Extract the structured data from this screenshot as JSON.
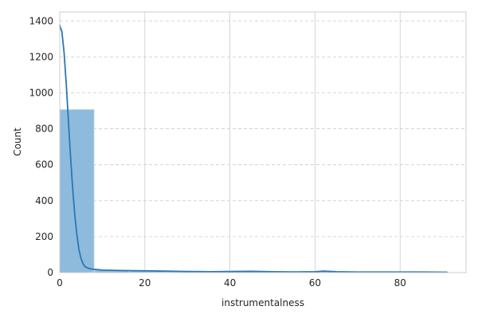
{
  "chart_data": {
    "type": "bar",
    "subtype": "histogram-with-kde",
    "xlabel": "instrumentalness",
    "ylabel": "Count",
    "xlim": [
      0,
      95.5
    ],
    "ylim": [
      0,
      1450
    ],
    "x_ticks": [
      0,
      20,
      40,
      60,
      80
    ],
    "y_ticks": [
      0,
      200,
      400,
      600,
      800,
      1000,
      1200,
      1400
    ],
    "grid": true,
    "bars": [
      {
        "x0": 0,
        "x1": 8.1,
        "value": 908
      },
      {
        "x0": 8.1,
        "x1": 16.2,
        "value": 14
      },
      {
        "x0": 16.2,
        "x1": 24.3,
        "value": 9
      },
      {
        "x0": 24.3,
        "x1": 32.4,
        "value": 5
      },
      {
        "x0": 32.4,
        "x1": 40.5,
        "value": 4
      },
      {
        "x0": 40.5,
        "x1": 48.6,
        "value": 6
      },
      {
        "x0": 48.6,
        "x1": 56.7,
        "value": 4
      },
      {
        "x0": 56.7,
        "x1": 64.8,
        "value": 6
      },
      {
        "x0": 64.8,
        "x1": 72.9,
        "value": 3
      },
      {
        "x0": 72.9,
        "x1": 81.0,
        "value": 3
      },
      {
        "x0": 81.0,
        "x1": 89.1,
        "value": 3
      },
      {
        "x0": 89.1,
        "x1": 91,
        "value": 2
      }
    ],
    "kde": {
      "x": [
        0,
        0.5,
        1,
        1.5,
        2,
        2.5,
        3,
        3.5,
        4,
        4.5,
        5,
        5.5,
        6,
        7,
        8,
        10,
        15,
        20,
        25,
        30,
        35,
        40,
        45,
        50,
        55,
        60,
        62,
        65,
        70,
        75,
        80,
        85,
        91
      ],
      "y": [
        1375,
        1340,
        1230,
        1060,
        860,
        660,
        480,
        330,
        215,
        130,
        78,
        48,
        32,
        22,
        18,
        14,
        11,
        10,
        8,
        6,
        5,
        6,
        7,
        5,
        4,
        5,
        8,
        5,
        3,
        3,
        3,
        3,
        2
      ]
    },
    "colors": {
      "bar_fill": "#8ebbdc",
      "bar_edge": "#d3e4f0",
      "kde_line": "#2a77b4",
      "grid": "#cccccc",
      "frame": "#cccccc"
    }
  }
}
